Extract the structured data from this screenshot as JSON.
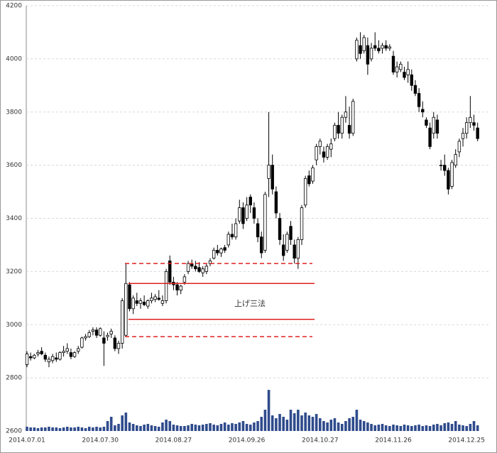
{
  "chart_data": {
    "type": "candlestick",
    "categories": [
      "2014.07.01",
      null,
      null,
      null,
      null,
      null,
      null,
      null,
      null,
      null,
      null,
      null,
      null,
      null,
      null,
      null,
      null,
      null,
      null,
      null,
      "2014.07.30",
      null,
      null,
      null,
      null,
      null,
      null,
      null,
      null,
      null,
      null,
      null,
      null,
      null,
      null,
      null,
      null,
      null,
      null,
      null,
      "2014.08.27",
      null,
      null,
      null,
      null,
      null,
      null,
      null,
      null,
      null,
      null,
      null,
      null,
      null,
      null,
      null,
      null,
      null,
      null,
      null,
      "2014.09.26",
      null,
      null,
      null,
      null,
      null,
      null,
      null,
      null,
      null,
      null,
      null,
      null,
      null,
      null,
      null,
      null,
      null,
      null,
      null,
      "2014.10.27",
      null,
      null,
      null,
      null,
      null,
      null,
      null,
      null,
      null,
      null,
      null,
      null,
      null,
      null,
      null,
      null,
      null,
      null,
      null,
      "2014.11.26",
      null,
      null,
      null,
      null,
      null,
      null,
      null,
      null,
      null,
      null,
      null,
      null,
      null,
      null,
      null,
      null,
      null,
      null,
      null,
      "2014.12.25",
      null,
      null,
      null
    ],
    "ohlc": [
      [
        2850,
        2900,
        2840,
        2890
      ],
      [
        2880,
        2895,
        2865,
        2875
      ],
      [
        2875,
        2890,
        2870,
        2885
      ],
      [
        2890,
        2905,
        2880,
        2895
      ],
      [
        2900,
        2915,
        2885,
        2890
      ],
      [
        2885,
        2895,
        2860,
        2870
      ],
      [
        2860,
        2880,
        2840,
        2870
      ],
      [
        2865,
        2890,
        2855,
        2880
      ],
      [
        2875,
        2895,
        2860,
        2870
      ],
      [
        2870,
        2900,
        2865,
        2895
      ],
      [
        2895,
        2920,
        2880,
        2900
      ],
      [
        2900,
        2930,
        2890,
        2910
      ],
      [
        2895,
        2910,
        2870,
        2880
      ],
      [
        2880,
        2900,
        2875,
        2895
      ],
      [
        2900,
        2920,
        2890,
        2910
      ],
      [
        2915,
        2955,
        2910,
        2950
      ],
      [
        2950,
        2965,
        2940,
        2955
      ],
      [
        2955,
        2980,
        2950,
        2970
      ],
      [
        2975,
        2990,
        2960,
        2980
      ],
      [
        2980,
        2990,
        2950,
        2960
      ],
      [
        2960,
        2990,
        2955,
        2985
      ],
      [
        2950,
        2975,
        2845,
        2930
      ],
      [
        2955,
        2970,
        2940,
        2960
      ],
      [
        2965,
        2985,
        2950,
        2975
      ],
      [
        2950,
        2960,
        2900,
        2910
      ],
      [
        2910,
        2940,
        2890,
        2930
      ],
      [
        2930,
        3100,
        2910,
        3090
      ],
      [
        2960,
        3230,
        2955,
        3155
      ],
      [
        3150,
        3160,
        3050,
        3060
      ],
      [
        3060,
        3110,
        3040,
        3100
      ],
      [
        3090,
        3120,
        3070,
        3080
      ],
      [
        3080,
        3100,
        3060,
        3090
      ],
      [
        3085,
        3110,
        3070,
        3075
      ],
      [
        3070,
        3095,
        3060,
        3090
      ],
      [
        3090,
        3120,
        3080,
        3100
      ],
      [
        3095,
        3115,
        3085,
        3105
      ],
      [
        3100,
        3130,
        3090,
        3095
      ],
      [
        3080,
        3110,
        3070,
        3090
      ],
      [
        3090,
        3210,
        3080,
        3200
      ],
      [
        3240,
        3260,
        3150,
        3160
      ],
      [
        3160,
        3180,
        3130,
        3150
      ],
      [
        3150,
        3160,
        3110,
        3130
      ],
      [
        3130,
        3150,
        3115,
        3145
      ],
      [
        3160,
        3190,
        3150,
        3180
      ],
      [
        3200,
        3240,
        3190,
        3230
      ],
      [
        3230,
        3245,
        3210,
        3220
      ],
      [
        3220,
        3240,
        3200,
        3210
      ],
      [
        3215,
        3235,
        3195,
        3200
      ],
      [
        3195,
        3220,
        3180,
        3210
      ],
      [
        3200,
        3230,
        3190,
        3220
      ],
      [
        3230,
        3250,
        3220,
        3240
      ],
      [
        3250,
        3290,
        3245,
        3280
      ],
      [
        3280,
        3300,
        3260,
        3270
      ],
      [
        3270,
        3290,
        3255,
        3285
      ],
      [
        3290,
        3300,
        3270,
        3280
      ],
      [
        3300,
        3350,
        3290,
        3340
      ],
      [
        3340,
        3380,
        3320,
        3330
      ],
      [
        3330,
        3400,
        3320,
        3380
      ],
      [
        3390,
        3470,
        3380,
        3440
      ],
      [
        3440,
        3460,
        3360,
        3380
      ],
      [
        3400,
        3480,
        3390,
        3450
      ],
      [
        3480,
        3490,
        3420,
        3450
      ],
      [
        3440,
        3460,
        3380,
        3400
      ],
      [
        3380,
        3400,
        3310,
        3330
      ],
      [
        3330,
        3350,
        3250,
        3270
      ],
      [
        3280,
        3500,
        3270,
        3490
      ],
      [
        3550,
        3800,
        3480,
        3600
      ],
      [
        3600,
        3640,
        3490,
        3510
      ],
      [
        3500,
        3520,
        3400,
        3420
      ],
      [
        3400,
        3420,
        3300,
        3320
      ],
      [
        3300,
        3340,
        3240,
        3260
      ],
      [
        3280,
        3350,
        3270,
        3340
      ],
      [
        3370,
        3390,
        3300,
        3320
      ],
      [
        3300,
        3320,
        3230,
        3250
      ],
      [
        3250,
        3330,
        3210,
        3320
      ],
      [
        3320,
        3450,
        3300,
        3440
      ],
      [
        3450,
        3560,
        3440,
        3550
      ],
      [
        3560,
        3580,
        3520,
        3530
      ],
      [
        3540,
        3600,
        3530,
        3590
      ],
      [
        3620,
        3680,
        3600,
        3670
      ],
      [
        3670,
        3700,
        3640,
        3690
      ],
      [
        3650,
        3670,
        3610,
        3630
      ],
      [
        3630,
        3680,
        3620,
        3670
      ],
      [
        3660,
        3700,
        3630,
        3680
      ],
      [
        3700,
        3760,
        3690,
        3750
      ],
      [
        3750,
        3800,
        3700,
        3720
      ],
      [
        3720,
        3790,
        3700,
        3780
      ],
      [
        3780,
        3860,
        3760,
        3800
      ],
      [
        3750,
        3820,
        3700,
        3720
      ],
      [
        3720,
        3850,
        3710,
        3840
      ],
      [
        4000,
        4080,
        3990,
        4070
      ],
      [
        4050,
        4100,
        4000,
        4020
      ],
      [
        4030,
        4090,
        4020,
        4080
      ],
      [
        4050,
        4080,
        3940,
        3980
      ],
      [
        4000,
        4060,
        3990,
        4040
      ],
      [
        4050,
        4100,
        4030,
        4040
      ],
      [
        4040,
        4070,
        4020,
        4030
      ],
      [
        4040,
        4060,
        4020,
        4050
      ],
      [
        4050,
        4070,
        4030,
        4040
      ],
      [
        4040,
        4055,
        4030,
        4045
      ],
      [
        4010,
        4030,
        3940,
        3950
      ],
      [
        3950,
        3990,
        3930,
        3970
      ],
      [
        3960,
        3990,
        3950,
        3980
      ],
      [
        3950,
        3970,
        3920,
        3930
      ],
      [
        3940,
        3990,
        3910,
        3960
      ],
      [
        3940,
        3960,
        3880,
        3900
      ],
      [
        3900,
        3920,
        3860,
        3870
      ],
      [
        3870,
        3890,
        3800,
        3820
      ],
      [
        3810,
        3840,
        3780,
        3800
      ],
      [
        3770,
        3780,
        3740,
        3750
      ],
      [
        3740,
        3760,
        3660,
        3670
      ],
      [
        3720,
        3800,
        3700,
        3780
      ],
      [
        3770,
        3790,
        3700,
        3720
      ],
      [
        3600,
        3620,
        3580,
        3600
      ],
      [
        3600,
        3640,
        3560,
        3580
      ],
      [
        3580,
        3590,
        3490,
        3510
      ],
      [
        3520,
        3620,
        3510,
        3610
      ],
      [
        3600,
        3660,
        3590,
        3640
      ],
      [
        3650,
        3700,
        3630,
        3690
      ],
      [
        3700,
        3740,
        3670,
        3720
      ],
      [
        3720,
        3780,
        3700,
        3760
      ],
      [
        3760,
        3860,
        3740,
        3780
      ],
      [
        3760,
        3790,
        3730,
        3750
      ],
      [
        3740,
        3760,
        3690,
        3700
      ]
    ],
    "up_color": "#ffffff",
    "down_color": "#000000",
    "volume": {
      "axis": "y2",
      "color": "#2f4b8c",
      "values": [
        6,
        5,
        5,
        4,
        5,
        5,
        6,
        5,
        5,
        4,
        5,
        6,
        5,
        5,
        6,
        5,
        4,
        6,
        5,
        6,
        5,
        6,
        14,
        20,
        8,
        10,
        22,
        26,
        12,
        10,
        8,
        7,
        9,
        10,
        8,
        7,
        6,
        12,
        16,
        14,
        9,
        8,
        7,
        7,
        8,
        10,
        9,
        8,
        9,
        10,
        11,
        9,
        8,
        10,
        12,
        9,
        11,
        10,
        12,
        14,
        10,
        9,
        12,
        14,
        20,
        30,
        58,
        22,
        18,
        24,
        20,
        16,
        30,
        25,
        30,
        22,
        26,
        22,
        20,
        24,
        18,
        14,
        12,
        16,
        18,
        12,
        10,
        14,
        18,
        20,
        30,
        16,
        14,
        12,
        10,
        8,
        9,
        10,
        8,
        7,
        9,
        8,
        7,
        9,
        8,
        7,
        8,
        9,
        7,
        8,
        7,
        9,
        10,
        8,
        11,
        12,
        10,
        14,
        9,
        8,
        7,
        10,
        14,
        8
      ]
    },
    "ylim": [
      2600,
      4200
    ],
    "yticks": [
      2600,
      2800,
      3000,
      3200,
      3400,
      3600,
      3800,
      4000,
      4200
    ],
    "y2lim": [
      0,
      600
    ],
    "grid": true,
    "annotation": {
      "text": "上げ三法",
      "color": "#e02020",
      "lines": [
        {
          "value": 3230,
          "style": "dashed"
        },
        {
          "value": 3155,
          "style": "solid"
        },
        {
          "value": 3020,
          "style": "solid"
        },
        {
          "value": 2955,
          "style": "dashed"
        }
      ]
    }
  }
}
